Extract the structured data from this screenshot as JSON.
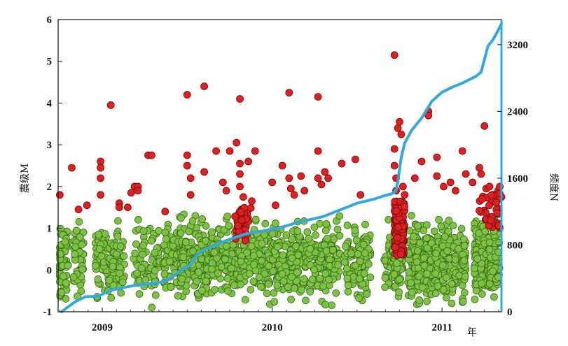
{
  "chart_data": {
    "type": "scatter",
    "xlabel": "年",
    "ylabel": "震级M",
    "y2label": "频度N",
    "x_tick_labels": [
      "2009",
      "2010",
      "2011"
    ],
    "x_ticks": [
      2009.0,
      2010.0,
      2011.0
    ],
    "xlim": [
      2008.74,
      2011.35
    ],
    "ylim": [
      -1,
      6
    ],
    "y_ticks": [
      -1,
      0,
      1,
      2,
      3,
      4,
      5,
      6
    ],
    "y2lim": [
      0,
      3500
    ],
    "y2_ticks": [
      0,
      800,
      1600,
      2400,
      3200
    ],
    "grid": false,
    "colors": {
      "small_events": "#7dc242",
      "large_events": "#e02020",
      "cumulative": "#34a8dc"
    },
    "series": [
      {
        "type": "scatter",
        "role": "magnitude M < 1.5",
        "color": "#7dc242",
        "x_range": [
          2008.75,
          2011.34
        ],
        "y_range": [
          -1.0,
          1.45
        ]
      },
      {
        "type": "scatter",
        "role": "magnitude M >= 1.5",
        "color": "#e02020",
        "points": [
          [
            2008.75,
            1.8
          ],
          [
            2008.82,
            2.45
          ],
          [
            2008.86,
            1.45
          ],
          [
            2008.91,
            1.55
          ],
          [
            2008.99,
            2.6
          ],
          [
            2008.99,
            2.45
          ],
          [
            2008.99,
            2.2
          ],
          [
            2008.99,
            1.8
          ],
          [
            2009.05,
            3.95
          ],
          [
            2009.1,
            1.6
          ],
          [
            2009.1,
            1.5
          ],
          [
            2009.15,
            1.5
          ],
          [
            2009.17,
            1.85
          ],
          [
            2009.19,
            2.0
          ],
          [
            2009.21,
            2.0
          ],
          [
            2009.21,
            1.9
          ],
          [
            2009.27,
            2.75
          ],
          [
            2009.29,
            2.75
          ],
          [
            2009.37,
            1.4
          ],
          [
            2009.5,
            4.2
          ],
          [
            2009.5,
            2.75
          ],
          [
            2009.5,
            2.5
          ],
          [
            2009.52,
            2.2
          ],
          [
            2009.52,
            1.8
          ],
          [
            2009.6,
            4.4
          ],
          [
            2009.6,
            2.35
          ],
          [
            2009.67,
            2.85
          ],
          [
            2009.71,
            2.1
          ],
          [
            2009.73,
            1.9
          ],
          [
            2009.75,
            2.85
          ],
          [
            2009.79,
            3.05
          ],
          [
            2009.81,
            4.1
          ],
          [
            2009.81,
            2.55
          ],
          [
            2009.81,
            2.3
          ],
          [
            2009.81,
            2.0
          ],
          [
            2009.83,
            1.75
          ],
          [
            2009.86,
            2.6
          ],
          [
            2009.9,
            2.85
          ],
          [
            2009.88,
            1.65
          ],
          [
            2009.86,
            1.45
          ],
          [
            2010.0,
            2.1
          ],
          [
            2010.02,
            1.55
          ],
          [
            2010.06,
            2.5
          ],
          [
            2010.1,
            4.25
          ],
          [
            2010.1,
            2.2
          ],
          [
            2010.11,
            1.95
          ],
          [
            2010.13,
            1.8
          ],
          [
            2010.17,
            2.25
          ],
          [
            2010.19,
            1.9
          ],
          [
            2010.27,
            4.15
          ],
          [
            2010.27,
            2.85
          ],
          [
            2010.27,
            2.2
          ],
          [
            2010.29,
            2.05
          ],
          [
            2010.31,
            2.35
          ],
          [
            2010.33,
            2.2
          ],
          [
            2010.41,
            2.55
          ],
          [
            2010.49,
            2.65
          ],
          [
            2010.52,
            1.8
          ],
          [
            2010.72,
            5.15
          ],
          [
            2010.72,
            2.9
          ],
          [
            2010.72,
            2.5
          ],
          [
            2010.73,
            2.2
          ],
          [
            2010.73,
            1.9
          ],
          [
            2010.74,
            3.4
          ],
          [
            2010.75,
            3.55
          ],
          [
            2010.76,
            3.25
          ],
          [
            2010.77,
            2.0
          ],
          [
            2010.78,
            1.8
          ],
          [
            2010.84,
            2.2
          ],
          [
            2010.88,
            2.6
          ],
          [
            2010.92,
            3.8
          ],
          [
            2010.92,
            3.7
          ],
          [
            2010.97,
            2.7
          ],
          [
            2010.97,
            2.25
          ],
          [
            2011.01,
            2.0
          ],
          [
            2011.05,
            2.1
          ],
          [
            2011.08,
            1.9
          ],
          [
            2011.12,
            2.85
          ],
          [
            2011.14,
            2.3
          ],
          [
            2011.18,
            2.1
          ],
          [
            2011.22,
            2.45
          ],
          [
            2011.23,
            2.3
          ],
          [
            2011.25,
            3.45
          ],
          [
            2011.26,
            1.95
          ],
          [
            2011.28,
            2.0
          ],
          [
            2011.31,
            1.8
          ],
          [
            2011.33,
            1.9
          ],
          [
            2011.34,
            2.0
          ],
          [
            2011.35,
            1.75
          ]
        ]
      },
      {
        "type": "line",
        "role": "cumulative frequency N (right axis)",
        "color": "#34a8dc",
        "x": [
          2008.76,
          2008.8,
          2008.84,
          2008.9,
          2008.98,
          2009.0,
          2009.04,
          2009.1,
          2009.2,
          2009.3,
          2009.36,
          2009.4,
          2009.44,
          2009.48,
          2009.52,
          2009.56,
          2009.62,
          2009.7,
          2009.78,
          2009.86,
          2009.95,
          2010.05,
          2010.15,
          2010.3,
          2010.4,
          2010.5,
          2010.6,
          2010.66,
          2010.7,
          2010.72,
          2010.73,
          2010.74,
          2010.76,
          2010.78,
          2010.82,
          2010.88,
          2010.94,
          2011.0,
          2011.06,
          2011.12,
          2011.16,
          2011.2,
          2011.23,
          2011.25,
          2011.27,
          2011.3,
          2011.32,
          2011.35
        ],
        "y": [
          0,
          60,
          120,
          180,
          185,
          210,
          250,
          280,
          320,
          340,
          360,
          400,
          460,
          520,
          560,
          690,
          760,
          830,
          890,
          940,
          970,
          1010,
          1070,
          1140,
          1220,
          1300,
          1350,
          1390,
          1410,
          1430,
          1460,
          1560,
          1850,
          2020,
          2170,
          2320,
          2520,
          2630,
          2690,
          2740,
          2780,
          2820,
          2870,
          3020,
          3180,
          3260,
          3330,
          3450
        ]
      }
    ]
  }
}
